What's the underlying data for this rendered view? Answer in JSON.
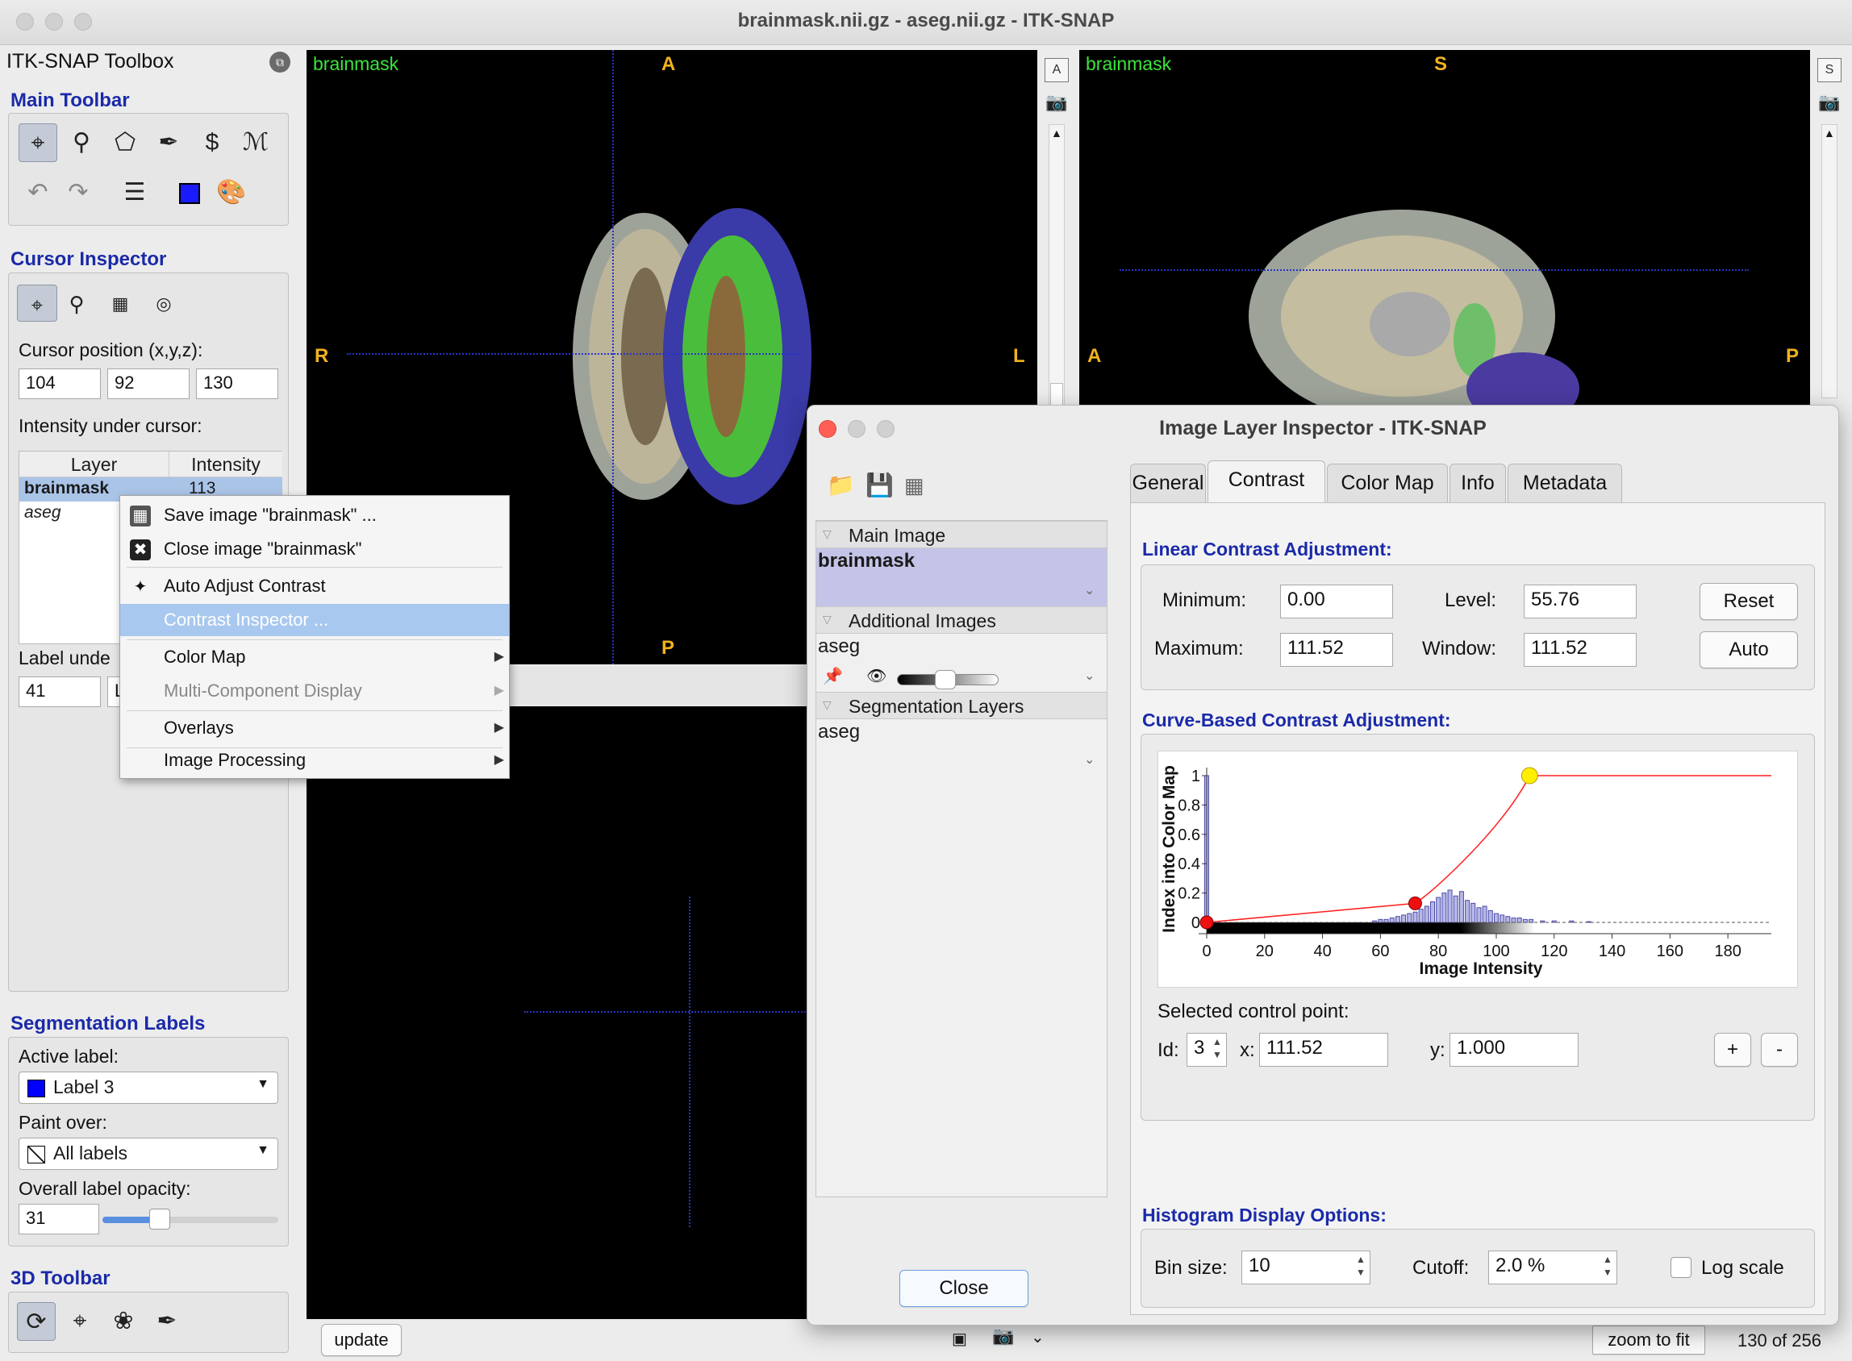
{
  "window": {
    "title": "brainmask.nii.gz - aseg.nii.gz - ITK-SNAP"
  },
  "toolbox": {
    "title": "ITK-SNAP Toolbox",
    "main_toolbar_title": "Main Toolbar",
    "cursor_inspector_title": "Cursor Inspector",
    "cursor_position_label": "Cursor position (x,y,z):",
    "cursor_x": "104",
    "cursor_y": "92",
    "cursor_z": "130",
    "intensity_label": "Intensity under cursor:",
    "layer_table": {
      "headers": [
        "Layer",
        "Intensity"
      ],
      "rows": [
        {
          "layer": "brainmask",
          "intensity": "113"
        },
        {
          "layer": "aseg",
          "intensity": ""
        }
      ]
    },
    "label_under_label": "Label unde",
    "label_under_value": "41",
    "label_under_partial": "L",
    "segmentation_title": "Segmentation Labels",
    "active_label_label": "Active label:",
    "active_label_value": "Label 3",
    "active_label_color": "#0000ff",
    "paint_over_label": "Paint over:",
    "paint_over_value": "All labels",
    "opacity_label": "Overall label opacity:",
    "opacity_value": "31",
    "toolbar3d_title": "3D Toolbar"
  },
  "viewers": {
    "axial": {
      "title": "brainmask",
      "top": "A",
      "bottom": "P",
      "left": "R",
      "right": "L"
    },
    "sagittal": {
      "title": "brainmask",
      "top": "S",
      "left": "A",
      "right": "P"
    },
    "axial_side_a": "A",
    "sagittal_side_s": "S"
  },
  "context_menu": {
    "items": [
      {
        "label": "Save image \"brainmask\" ...",
        "icon": "save-icon"
      },
      {
        "label": "Close image \"brainmask\"",
        "icon": "close-icon"
      },
      {
        "label": "Auto Adjust Contrast",
        "icon": "magic-wand-icon"
      },
      {
        "label": "Contrast Inspector ...",
        "selected": true
      },
      {
        "label": "Color Map",
        "submenu": true
      },
      {
        "label": "Multi-Component Display",
        "submenu": true,
        "disabled": true
      },
      {
        "label": "Overlays",
        "submenu": true
      },
      {
        "label": "Image Processing",
        "submenu": true
      }
    ]
  },
  "dialog": {
    "title": "Image Layer Inspector - ITK-SNAP",
    "layers": {
      "main_header": "Main Image",
      "main_item": "brainmask",
      "additional_header": "Additional Images",
      "additional_item": "aseg",
      "segmentation_header": "Segmentation Layers",
      "segmentation_item": "aseg",
      "additional_opacity": 0.6
    },
    "tabs": [
      "General",
      "Contrast",
      "Color Map",
      "Info",
      "Metadata"
    ],
    "active_tab": "Contrast",
    "linear": {
      "title": "Linear Contrast Adjustment:",
      "min_label": "Minimum:",
      "min_value": "0.00",
      "max_label": "Maximum:",
      "max_value": "111.52",
      "level_label": "Level:",
      "level_value": "55.76",
      "window_label": "Window:",
      "window_value": "111.52",
      "reset_label": "Reset",
      "auto_label": "Auto"
    },
    "curve": {
      "title": "Curve-Based Contrast Adjustment:",
      "selected_label": "Selected control point:",
      "id_label": "Id:",
      "id_value": "3",
      "x_label": "x:",
      "x_value": "111.52",
      "y_label": "y:",
      "y_value": "1.000",
      "plus_label": "+",
      "minus_label": "-"
    },
    "histogram": {
      "title": "Histogram Display Options:",
      "bin_label": "Bin size:",
      "bin_value": "10",
      "cutoff_label": "Cutoff:",
      "cutoff_value": "2.0 %",
      "log_label": "Log scale",
      "log_checked": false
    },
    "close_label": "Close"
  },
  "chart_data": {
    "type": "line",
    "xlabel": "Image Intensity",
    "ylabel": "Index into Color Map",
    "xlim": [
      0,
      195
    ],
    "ylim": [
      0,
      1
    ],
    "x_ticks": [
      "0",
      "20",
      "40",
      "60",
      "80",
      "100",
      "120",
      "140",
      "160",
      "180"
    ],
    "y_ticks": [
      "0",
      "0.2",
      "0.4",
      "0.6",
      "0.8",
      "1"
    ],
    "control_points": [
      {
        "x": 0,
        "y": 0
      },
      {
        "x": 72,
        "y": 0.13
      },
      {
        "x": 111.52,
        "y": 1.0
      }
    ],
    "histogram": [
      {
        "x": 0,
        "y": 1.0
      },
      {
        "x": 58,
        "y": 0.01
      },
      {
        "x": 60,
        "y": 0.02
      },
      {
        "x": 62,
        "y": 0.02
      },
      {
        "x": 64,
        "y": 0.03
      },
      {
        "x": 66,
        "y": 0.04
      },
      {
        "x": 68,
        "y": 0.05
      },
      {
        "x": 70,
        "y": 0.06
      },
      {
        "x": 72,
        "y": 0.07
      },
      {
        "x": 74,
        "y": 0.09
      },
      {
        "x": 76,
        "y": 0.11
      },
      {
        "x": 78,
        "y": 0.14
      },
      {
        "x": 80,
        "y": 0.17
      },
      {
        "x": 82,
        "y": 0.2
      },
      {
        "x": 84,
        "y": 0.22
      },
      {
        "x": 86,
        "y": 0.18
      },
      {
        "x": 88,
        "y": 0.21
      },
      {
        "x": 90,
        "y": 0.15
      },
      {
        "x": 92,
        "y": 0.13
      },
      {
        "x": 94,
        "y": 0.1
      },
      {
        "x": 96,
        "y": 0.11
      },
      {
        "x": 98,
        "y": 0.08
      },
      {
        "x": 100,
        "y": 0.06
      },
      {
        "x": 102,
        "y": 0.05
      },
      {
        "x": 104,
        "y": 0.04
      },
      {
        "x": 106,
        "y": 0.03
      },
      {
        "x": 108,
        "y": 0.03
      },
      {
        "x": 110,
        "y": 0.02
      },
      {
        "x": 112,
        "y": 0.02
      },
      {
        "x": 116,
        "y": 0.01
      },
      {
        "x": 120,
        "y": 0.01
      },
      {
        "x": 126,
        "y": 0.01
      },
      {
        "x": 132,
        "y": 0.005
      }
    ]
  },
  "statusbar": {
    "update_label": "update",
    "zoom_label": "zoom to fit",
    "slice_text": "130 of 256"
  },
  "colors": {
    "section": "#1b2aa8",
    "viewer_label": "#3de33d",
    "orientation": "#f2b21e",
    "selection": "#a8c8ef"
  }
}
